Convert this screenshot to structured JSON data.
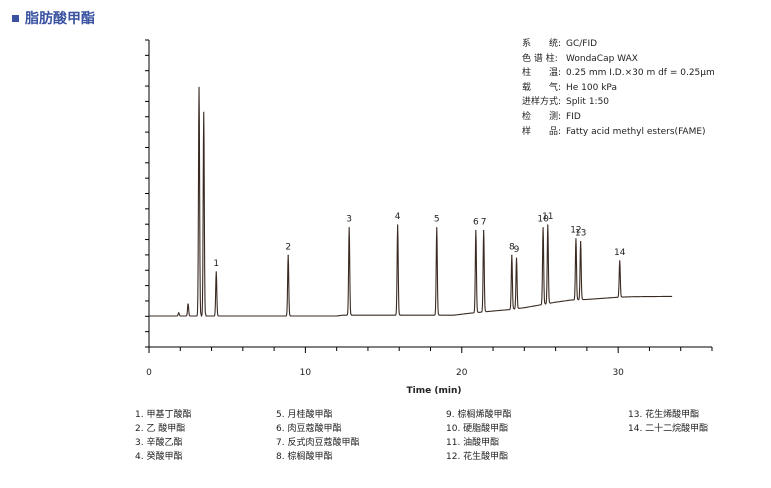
{
  "header": {
    "title": "脂肪酸甲酯"
  },
  "info": [
    {
      "label": "系　　统:",
      "value": "GC/FID"
    },
    {
      "label": "色 谱 柱:",
      "value": "WondaCap WAX"
    },
    {
      "label": "柱　　温:",
      "value": "0.25 mm I.D.×30 m df = 0.25μm"
    },
    {
      "label": "载　　气:",
      "value": "He 100 kPa"
    },
    {
      "label": "进样方式:",
      "value": "Split 1:50"
    },
    {
      "label": "检　　测:",
      "value": "FID"
    },
    {
      "label": "样　　品:",
      "value": "Fatty acid methyl esters(FAME)"
    }
  ],
  "legend_columns": [
    [
      "1.  甲基丁酸酯",
      "2.  乙 酸甲酯",
      "3.  辛酸乙酯",
      "4.  癸酸甲酯"
    ],
    [
      "5.  月桂酸甲酯",
      "6.  肉豆蔻酸甲酯",
      "7.  反式肉豆蔻酸甲酯",
      "8.  棕榈酸甲酯"
    ],
    [
      "9.  棕榈烯酸甲酯",
      "10.  硬脂酸甲酯",
      "11.  油酸甲酯",
      "12.  花生酸甲酯"
    ],
    [
      "13.  花生烯酸甲酯",
      "14.  二十二烷酸甲酯"
    ]
  ],
  "chart_data": {
    "type": "line",
    "xlabel": "Time (min)",
    "ylabel": "",
    "xlim": [
      0,
      36
    ],
    "ylim": [
      0,
      100
    ],
    "x_ticks": [
      0,
      10,
      20,
      30
    ],
    "grid": false,
    "line_color": "#3a2a22",
    "solvent_peaks": [
      {
        "x": 1.9,
        "y": 1.2
      },
      {
        "x": 2.5,
        "y": 4.5
      },
      {
        "x": 3.2,
        "y": 83
      },
      {
        "x": 3.5,
        "y": 74
      }
    ],
    "peaks": [
      {
        "label": "1",
        "x": 4.3,
        "y": 16
      },
      {
        "label": "2",
        "x": 8.9,
        "y": 22
      },
      {
        "label": "3",
        "x": 12.8,
        "y": 32
      },
      {
        "label": "4",
        "x": 15.9,
        "y": 33
      },
      {
        "label": "5",
        "x": 18.4,
        "y": 32
      },
      {
        "label": "6",
        "x": 20.9,
        "y": 31
      },
      {
        "label": "7",
        "x": 21.4,
        "y": 31
      },
      {
        "label": "8",
        "x": 23.2,
        "y": 22
      },
      {
        "label": "9",
        "x": 23.5,
        "y": 21
      },
      {
        "label": "10",
        "x": 25.2,
        "y": 32
      },
      {
        "label": "11",
        "x": 25.5,
        "y": 33
      },
      {
        "label": "12",
        "x": 27.3,
        "y": 28
      },
      {
        "label": "13",
        "x": 27.6,
        "y": 27
      },
      {
        "label": "14",
        "x": 30.1,
        "y": 20
      }
    ],
    "baseline": [
      {
        "x": 0,
        "y": 0
      },
      {
        "x": 12,
        "y": 0
      },
      {
        "x": 12.4,
        "y": 0.3
      },
      {
        "x": 15,
        "y": 0.3
      },
      {
        "x": 19.5,
        "y": 0.3
      },
      {
        "x": 20.5,
        "y": 1.0
      },
      {
        "x": 22,
        "y": 1.8
      },
      {
        "x": 23,
        "y": 2.3
      },
      {
        "x": 24,
        "y": 3.0
      },
      {
        "x": 25,
        "y": 4.0
      },
      {
        "x": 26,
        "y": 5.0
      },
      {
        "x": 27,
        "y": 5.8
      },
      {
        "x": 28,
        "y": 6.0
      },
      {
        "x": 29,
        "y": 6.4
      },
      {
        "x": 30,
        "y": 6.8
      },
      {
        "x": 31,
        "y": 7.0
      },
      {
        "x": 33.5,
        "y": 7.1
      }
    ]
  }
}
